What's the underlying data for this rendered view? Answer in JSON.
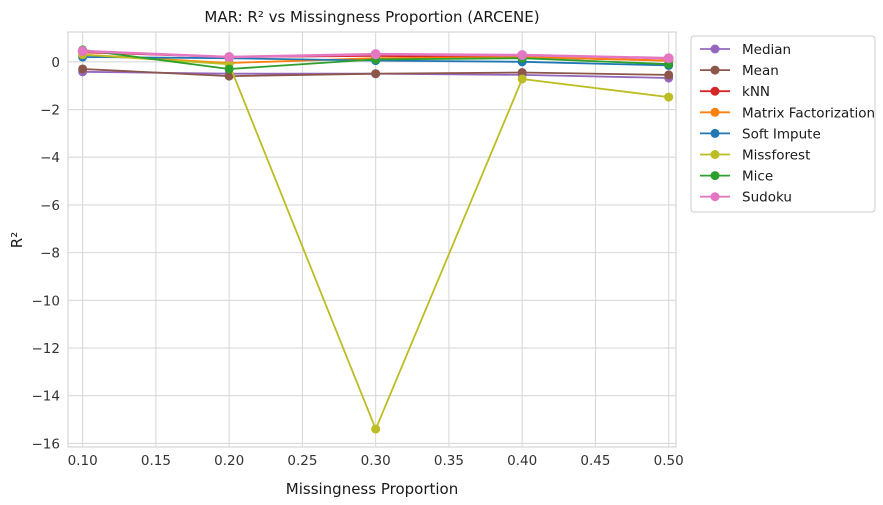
{
  "chart_data": {
    "type": "line",
    "title": "MAR: R² vs Missingness Proportion (ARCENE)",
    "xlabel": "Missingness Proportion",
    "ylabel": "R²",
    "x": [
      0.1,
      0.2,
      0.3,
      0.4,
      0.5
    ],
    "xlim": [
      0.09,
      0.505
    ],
    "ylim": [
      -16.15,
      1.25
    ],
    "xticks": [
      "0.10",
      "0.15",
      "0.20",
      "0.25",
      "0.30",
      "0.35",
      "0.40",
      "0.45",
      "0.50"
    ],
    "xtick_values": [
      0.1,
      0.15,
      0.2,
      0.25,
      0.3,
      0.35,
      0.4,
      0.45,
      0.5
    ],
    "yticks": [
      "0",
      "−2",
      "−4",
      "−6",
      "−8",
      "−10",
      "−12",
      "−14",
      "−16"
    ],
    "ytick_values": [
      0,
      -2,
      -4,
      -6,
      -8,
      -10,
      -12,
      -14,
      -16
    ],
    "grid": true,
    "legend_position": "outside-right",
    "series": [
      {
        "name": "Median",
        "color": "#9467bd",
        "values": [
          -0.42,
          -0.5,
          -0.5,
          -0.55,
          -0.68
        ]
      },
      {
        "name": "Mean",
        "color": "#8c564b",
        "values": [
          -0.3,
          -0.6,
          -0.5,
          -0.45,
          -0.55
        ]
      },
      {
        "name": "kNN",
        "color": "#d62728",
        "values": [
          0.4,
          0.2,
          0.25,
          0.2,
          0.05
        ]
      },
      {
        "name": "Matrix Factorization",
        "color": "#ff7f0e",
        "values": [
          0.3,
          -0.05,
          0.15,
          0.2,
          0.05
        ]
      },
      {
        "name": "Soft Impute",
        "color": "#1f77b4",
        "values": [
          0.2,
          0.15,
          0.05,
          0.0,
          -0.15
        ]
      },
      {
        "name": "Missforest",
        "color": "#bcbd22",
        "values": [
          0.3,
          -0.1,
          -15.4,
          -0.72,
          -1.48
        ]
      },
      {
        "name": "Mice",
        "color": "#2ca02c",
        "values": [
          0.5,
          -0.3,
          0.1,
          0.15,
          -0.1
        ]
      },
      {
        "name": "Sudoku",
        "color": "#e377c2",
        "values": [
          0.45,
          0.2,
          0.32,
          0.28,
          0.15
        ]
      }
    ]
  }
}
